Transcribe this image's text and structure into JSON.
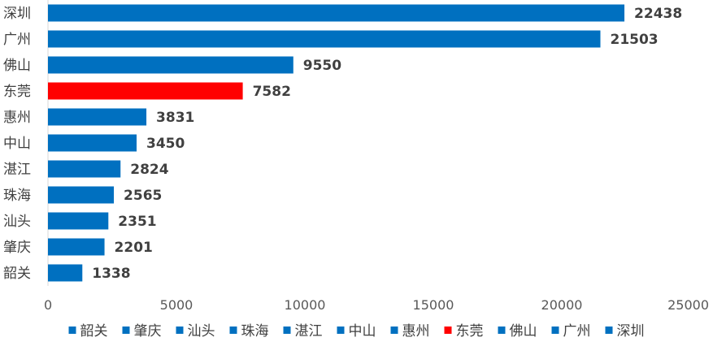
{
  "chart_data": {
    "type": "bar",
    "orientation": "horizontal",
    "categories": [
      "深圳",
      "广州",
      "佛山",
      "东莞",
      "惠州",
      "中山",
      "湛江",
      "珠海",
      "汕头",
      "肇庆",
      "韶关"
    ],
    "values": [
      22438,
      21503,
      9550,
      7582,
      3831,
      3450,
      2824,
      2565,
      2351,
      2201,
      1338
    ],
    "bar_colors": [
      "#0070C0",
      "#0070C0",
      "#0070C0",
      "#FF0000",
      "#0070C0",
      "#0070C0",
      "#0070C0",
      "#0070C0",
      "#0070C0",
      "#0070C0",
      "#0070C0"
    ],
    "x_ticks": [
      "0",
      "5000",
      "10000",
      "15000",
      "20000",
      "25000"
    ],
    "xlim": [
      0,
      25000
    ],
    "grid": false,
    "legend_position": "bottom",
    "legend": [
      {
        "label": "韶关",
        "color": "#0070C0"
      },
      {
        "label": "肇庆",
        "color": "#0070C0"
      },
      {
        "label": "汕头",
        "color": "#0070C0"
      },
      {
        "label": "珠海",
        "color": "#0070C0"
      },
      {
        "label": "湛江",
        "color": "#0070C0"
      },
      {
        "label": "中山",
        "color": "#0070C0"
      },
      {
        "label": "惠州",
        "color": "#0070C0"
      },
      {
        "label": "东莞",
        "color": "#FF0000"
      },
      {
        "label": "佛山",
        "color": "#0070C0"
      },
      {
        "label": "广州",
        "color": "#0070C0"
      },
      {
        "label": "深圳",
        "color": "#0070C0"
      }
    ]
  }
}
